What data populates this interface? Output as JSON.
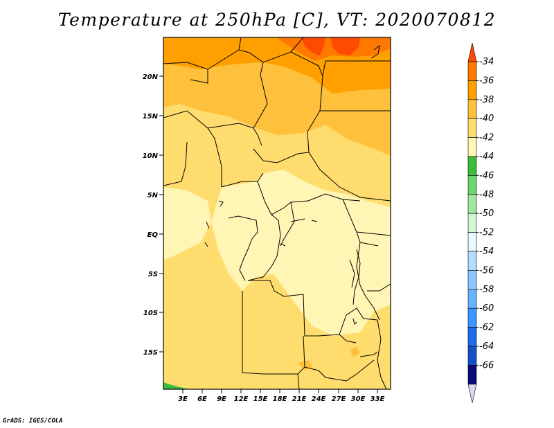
{
  "title": "Temperature at 250hPa [C], VT: 2020070812",
  "credit": "GrADS: IGES/COLA",
  "map": {
    "projection": "latlon",
    "lon_range": [
      "0E",
      "35E"
    ],
    "lat_range": [
      "20S",
      "25N"
    ],
    "x_axis_labels": [
      "3E",
      "6E",
      "9E",
      "12E",
      "15E",
      "18E",
      "21E",
      "24E",
      "27E",
      "30E",
      "33E"
    ],
    "y_axis_labels": [
      "20N",
      "15N",
      "10N",
      "5N",
      "EQ",
      "5S",
      "10S",
      "15S"
    ]
  },
  "colorbar": {
    "labels": [
      "-34",
      "-36",
      "-38",
      "-40",
      "-42",
      "-44",
      "-46",
      "-48",
      "-50",
      "-52",
      "-54",
      "-56",
      "-58",
      "-60",
      "-62",
      "-64",
      "-66"
    ],
    "colors": [
      "#ff4b00",
      "#ff7800",
      "#ffa000",
      "#ffc03c",
      "#ffdc6e",
      "#fff5b4",
      "#3cbe3c",
      "#6ed66e",
      "#a0e6a0",
      "#d2f5d2",
      "#e6faff",
      "#b4dcff",
      "#8cc8ff",
      "#64b4ff",
      "#3c96ff",
      "#1e6eeb",
      "#1450c8",
      "#0a0a78",
      "#d8d8f0"
    ]
  }
}
